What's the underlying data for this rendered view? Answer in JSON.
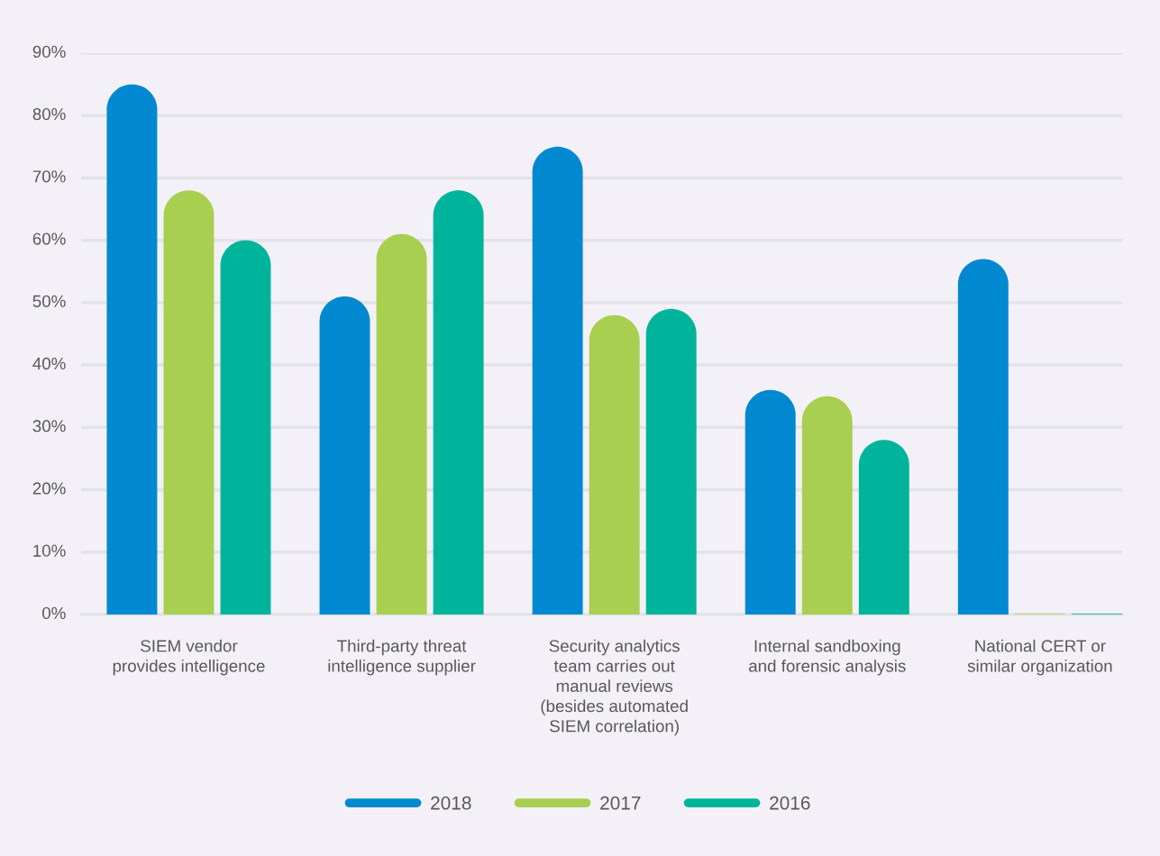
{
  "chart_data": {
    "type": "bar",
    "categories": [
      "SIEM vendor\nprovides intelligence",
      "Third-party threat\nintelligence supplier",
      "Security analytics\nteam carries out\nmanual reviews\n(besides automated\nSIEM correlation)",
      "Internal sandboxing\nand forensic analysis",
      "National CERT or\nsimilar organization"
    ],
    "series": [
      {
        "name": "2018",
        "color": "#0089d0",
        "values": [
          85,
          51,
          75,
          36,
          57
        ]
      },
      {
        "name": "2017",
        "color": "#a8cf4f",
        "values": [
          68,
          61,
          48,
          35,
          0
        ]
      },
      {
        "name": "2016",
        "color": "#00b49c",
        "values": [
          60,
          68,
          49,
          28,
          0
        ]
      }
    ],
    "ylim": [
      0,
      90
    ],
    "yticks": [
      {
        "value": 0,
        "label": "0%"
      },
      {
        "value": 10,
        "label": "10%"
      },
      {
        "value": 20,
        "label": "20%"
      },
      {
        "value": 30,
        "label": "30%"
      },
      {
        "value": 40,
        "label": "40%"
      },
      {
        "value": 50,
        "label": "50%"
      },
      {
        "value": 60,
        "label": "60%"
      },
      {
        "value": 70,
        "label": "70%"
      },
      {
        "value": 80,
        "label": "80%"
      },
      {
        "value": 90,
        "label": "90%"
      }
    ],
    "grid": "y",
    "legend": "bottom"
  }
}
